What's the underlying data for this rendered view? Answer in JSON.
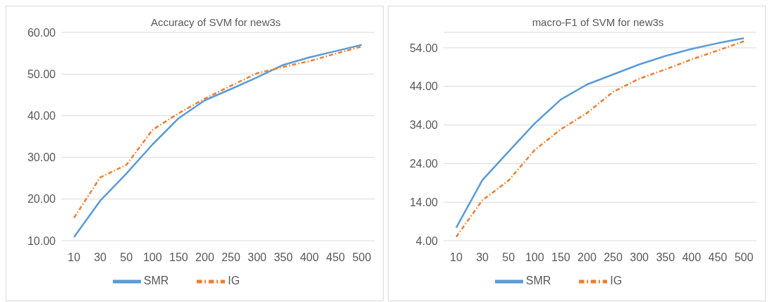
{
  "chart_data": [
    {
      "type": "line",
      "title": "Accuracy of SVM for new3s",
      "categories": [
        "10",
        "30",
        "50",
        "100",
        "150",
        "200",
        "250",
        "300",
        "350",
        "400",
        "450",
        "500"
      ],
      "series": [
        {
          "name": "SMR",
          "color": "#5b9bd5",
          "line_style": "solid",
          "values": [
            10.9,
            19.6,
            26.1,
            33.1,
            39.4,
            43.7,
            46.4,
            49.2,
            52.2,
            54.0,
            55.5,
            57.0
          ]
        },
        {
          "name": "IG",
          "color": "#ed7d31",
          "line_style": "dashed",
          "values": [
            15.5,
            25.2,
            28.2,
            36.6,
            40.6,
            44.1,
            47.2,
            50.2,
            51.7,
            53.1,
            54.9,
            56.6
          ]
        }
      ],
      "ylim": [
        10,
        60
      ],
      "yticks": [
        {
          "value": 10,
          "label": "10.00"
        },
        {
          "value": 20,
          "label": "20.00"
        },
        {
          "value": 30,
          "label": "30.00"
        },
        {
          "value": 40,
          "label": "40.00"
        },
        {
          "value": 50,
          "label": "50.00"
        },
        {
          "value": 60,
          "label": "60.00"
        }
      ],
      "grid": "y",
      "legend": "bottom",
      "marker": "none"
    },
    {
      "type": "line",
      "title": "macro-F1 of SVM for new3s",
      "categories": [
        "10",
        "30",
        "50",
        "100",
        "150",
        "200",
        "250",
        "300",
        "350",
        "400",
        "450",
        "500"
      ],
      "series": [
        {
          "name": "SMR",
          "color": "#5b9bd5",
          "line_style": "solid",
          "values": [
            7.4,
            19.7,
            27.1,
            34.4,
            40.6,
            44.5,
            47.1,
            49.7,
            51.9,
            53.7,
            55.2,
            56.5
          ]
        },
        {
          "name": "IG",
          "color": "#ed7d31",
          "line_style": "dashed",
          "values": [
            5.0,
            14.5,
            19.6,
            27.5,
            32.9,
            37.1,
            42.6,
            46.0,
            48.4,
            51.0,
            53.3,
            55.7
          ]
        }
      ],
      "ylim": [
        4,
        58
      ],
      "yticks": [
        {
          "value": 4,
          "label": "4.00"
        },
        {
          "value": 14,
          "label": "14.00"
        },
        {
          "value": 24,
          "label": "24.00"
        },
        {
          "value": 34,
          "label": "34.00"
        },
        {
          "value": 44,
          "label": "44.00"
        },
        {
          "value": 54,
          "label": "54.00"
        }
      ],
      "grid": "y",
      "legend": "bottom",
      "marker": "none"
    }
  ]
}
